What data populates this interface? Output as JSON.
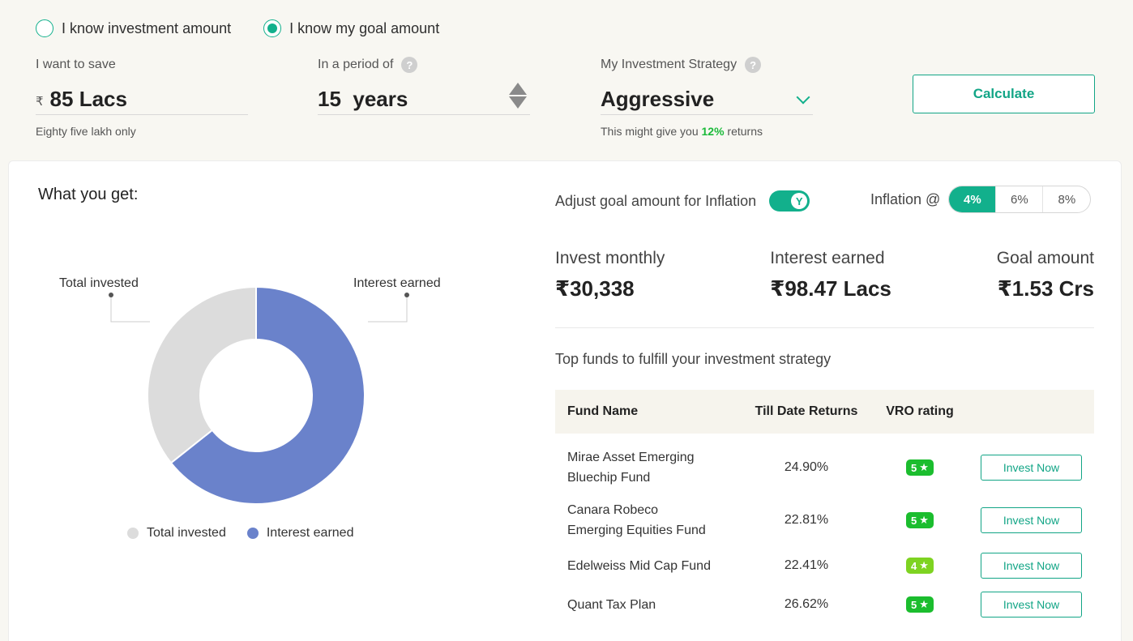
{
  "mode": {
    "options": [
      {
        "label": "I know investment amount",
        "selected": false
      },
      {
        "label": "I know my goal amount",
        "selected": true
      }
    ]
  },
  "save": {
    "label": "I want to save",
    "currency_symbol": "₹",
    "value": "85 Lacs",
    "hint": "Eighty five lakh only"
  },
  "period": {
    "label": "In a period of",
    "value": "15  years",
    "help": "?"
  },
  "strategy": {
    "label": "My Investment Strategy",
    "help": "?",
    "value": "Aggressive",
    "hint_prefix": "This might give you",
    "hint_rate": "12%",
    "hint_suffix": "returns"
  },
  "calculate_label": "Calculate",
  "result": {
    "title": "What you get:",
    "chart_data": {
      "type": "pie",
      "categories": [
        "Total invested",
        "Interest earned"
      ],
      "values": [
        54.61,
        98.47
      ],
      "units": "Lacs",
      "colors": [
        "#dcdcdc",
        "#6a82cb"
      ],
      "legend": "bottom",
      "callout_labels": [
        "Total invested",
        "Interest earned"
      ]
    },
    "legend": [
      {
        "label": "Total invested",
        "color": "#dcdcdc"
      },
      {
        "label": "Interest earned",
        "color": "#6a82cb"
      }
    ],
    "adjust_label": "Adjust goal amount for Inflation",
    "toggle_label": "Y",
    "inflation_label": "Inflation @",
    "inflation_options": [
      "4%",
      "6%",
      "8%"
    ],
    "inflation_selected": 0,
    "stats": [
      {
        "label": "Invest monthly",
        "value": "₹30,338"
      },
      {
        "label": "Interest earned",
        "value": "₹98.47 Lacs"
      },
      {
        "label": "Goal amount",
        "value": "₹1.53 Crs"
      }
    ],
    "top_funds_title": "Top funds to fulfill your investment strategy",
    "table_headers": [
      "Fund Name",
      "Till Date Returns",
      "VRO rating"
    ],
    "funds": [
      {
        "name_line1": "Mirae Asset Emerging",
        "name_line2": "Bluechip Fund",
        "returns": "24.90%",
        "rating": "5",
        "action": "Invest Now"
      },
      {
        "name_line1": "Canara Robeco",
        "name_line2": "Emerging Equities Fund",
        "returns": "22.81%",
        "rating": "5",
        "action": "Invest Now"
      },
      {
        "name_line1": "Edelweiss Mid Cap Fund",
        "name_line2": "",
        "returns": "22.41%",
        "rating": "4",
        "action": "Invest Now"
      },
      {
        "name_line1": "Quant Tax Plan",
        "name_line2": "",
        "returns": "26.62%",
        "rating": "5",
        "action": "Invest Now"
      }
    ]
  }
}
